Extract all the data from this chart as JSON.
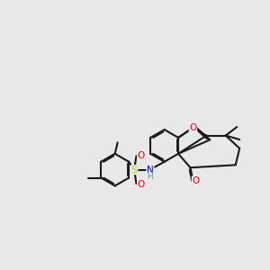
{
  "background_color": "#e8e8e8",
  "bond_color": "#1a1a1a",
  "bond_width": 1.5,
  "dbo": 0.055,
  "atom_colors": {
    "O": "#ff0000",
    "S": "#cccc00",
    "N": "#0000cc",
    "H": "#5a9a9a",
    "C": "#1a1a1a"
  },
  "figsize": [
    3.0,
    3.0
  ],
  "dpi": 100,
  "xlim": [
    0,
    10
  ],
  "ylim": [
    1,
    8
  ]
}
